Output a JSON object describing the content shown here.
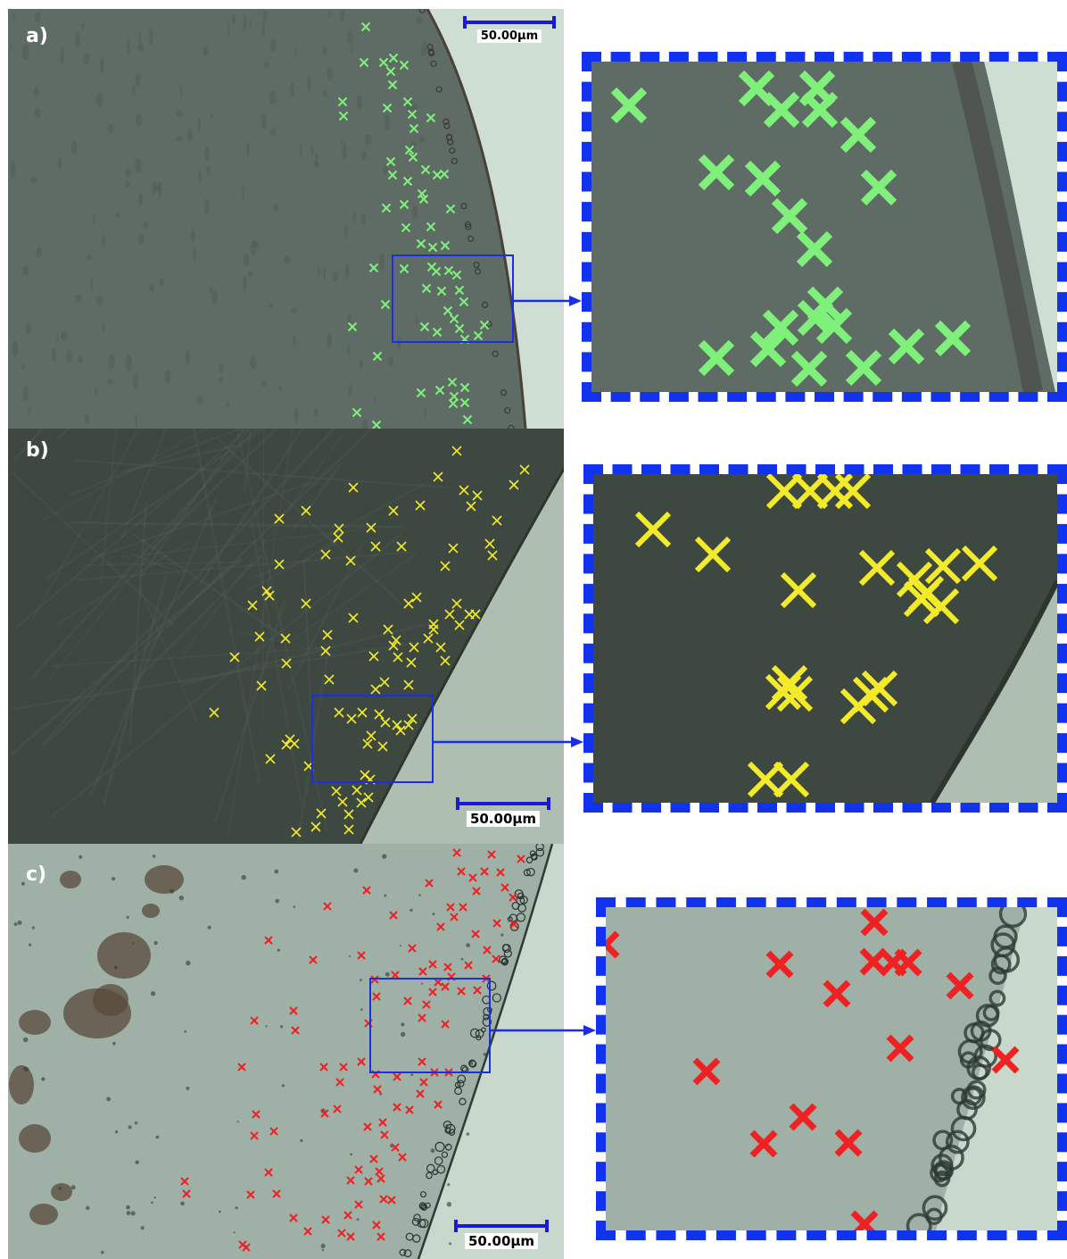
{
  "panels": [
    {
      "label": "a)",
      "scale_bar": "50.00µm",
      "marker_color": "#7ff07a",
      "marker_name": "green-x-marker",
      "tissue_color": "#5f6c66",
      "edge_color": "#cfded3"
    },
    {
      "label": "b)",
      "scale_bar": "50.00µm",
      "marker_color": "#f3ea2a",
      "marker_name": "yellow-x-marker",
      "tissue_color": "#3d4940",
      "edge_color": "#aebfb2"
    },
    {
      "label": "c)",
      "scale_bar": "50.00µm",
      "marker_color": "#ee2222",
      "marker_name": "red-x-marker",
      "tissue_color": "#9fb0a6",
      "edge_color": "#c8d8cc"
    }
  ],
  "colors": {
    "roi_box": "#1a2ee6",
    "zoom_frame": "#1133ee",
    "arrow": "#1a2ee6"
  }
}
